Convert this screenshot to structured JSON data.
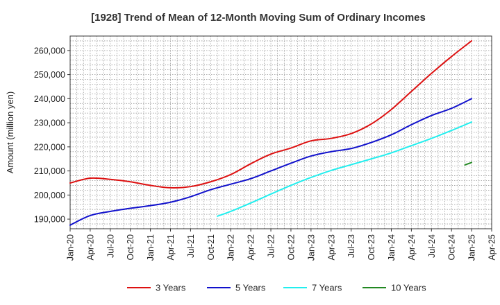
{
  "chart_data": {
    "type": "line",
    "title": "[1928]  Trend of Mean of 12-Month Moving Sum of Ordinary Incomes",
    "xlabel": "",
    "ylabel": "Amount (million yen)",
    "ylim": [
      186000,
      266000
    ],
    "y_ticks": [
      190000,
      200000,
      210000,
      220000,
      230000,
      240000,
      250000,
      260000
    ],
    "y_tick_labels": [
      "190,000",
      "200,000",
      "210,000",
      "220,000",
      "230,000",
      "240,000",
      "250,000",
      "260,000"
    ],
    "x_range_months": [
      0,
      63
    ],
    "x_ticks": [
      {
        "m": 0,
        "label": "Jan-20"
      },
      {
        "m": 3,
        "label": "Apr-20"
      },
      {
        "m": 6,
        "label": "Jul-20"
      },
      {
        "m": 9,
        "label": "Oct-20"
      },
      {
        "m": 12,
        "label": "Jan-21"
      },
      {
        "m": 15,
        "label": "Apr-21"
      },
      {
        "m": 18,
        "label": "Jul-21"
      },
      {
        "m": 21,
        "label": "Oct-21"
      },
      {
        "m": 24,
        "label": "Jan-22"
      },
      {
        "m": 27,
        "label": "Apr-22"
      },
      {
        "m": 30,
        "label": "Jul-22"
      },
      {
        "m": 33,
        "label": "Oct-22"
      },
      {
        "m": 36,
        "label": "Jan-23"
      },
      {
        "m": 39,
        "label": "Apr-23"
      },
      {
        "m": 42,
        "label": "Jul-23"
      },
      {
        "m": 45,
        "label": "Oct-23"
      },
      {
        "m": 48,
        "label": "Jan-24"
      },
      {
        "m": 51,
        "label": "Apr-24"
      },
      {
        "m": 54,
        "label": "Jul-24"
      },
      {
        "m": 57,
        "label": "Oct-24"
      },
      {
        "m": 60,
        "label": "Jan-25"
      },
      {
        "m": 63,
        "label": "Apr-25"
      }
    ],
    "grid": true,
    "legend_position": "bottom",
    "series": [
      {
        "name": "3 Years",
        "color": "#dd1111",
        "points": [
          [
            0,
            205000
          ],
          [
            3,
            207000
          ],
          [
            6,
            206500
          ],
          [
            9,
            205500
          ],
          [
            12,
            204000
          ],
          [
            15,
            203000
          ],
          [
            18,
            203500
          ],
          [
            21,
            205500
          ],
          [
            24,
            208500
          ],
          [
            27,
            213000
          ],
          [
            30,
            217000
          ],
          [
            33,
            219500
          ],
          [
            36,
            222500
          ],
          [
            39,
            223500
          ],
          [
            42,
            225500
          ],
          [
            45,
            229500
          ],
          [
            48,
            235500
          ],
          [
            51,
            243000
          ],
          [
            54,
            250500
          ],
          [
            57,
            257500
          ],
          [
            60,
            264000
          ]
        ]
      },
      {
        "name": "5 Years",
        "color": "#1111cc",
        "points": [
          [
            0,
            187500
          ],
          [
            3,
            191500
          ],
          [
            6,
            193200
          ],
          [
            9,
            194500
          ],
          [
            12,
            195600
          ],
          [
            15,
            197000
          ],
          [
            18,
            199300
          ],
          [
            21,
            202200
          ],
          [
            24,
            204500
          ],
          [
            27,
            206800
          ],
          [
            30,
            210000
          ],
          [
            33,
            213200
          ],
          [
            36,
            216200
          ],
          [
            39,
            218000
          ],
          [
            42,
            219300
          ],
          [
            45,
            221800
          ],
          [
            48,
            225000
          ],
          [
            51,
            229200
          ],
          [
            54,
            233000
          ],
          [
            57,
            236000
          ],
          [
            60,
            240000
          ]
        ]
      },
      {
        "name": "7 Years",
        "color": "#22eeee",
        "points": [
          [
            22,
            191200
          ],
          [
            24,
            193200
          ],
          [
            27,
            196700
          ],
          [
            30,
            200400
          ],
          [
            33,
            204000
          ],
          [
            36,
            207300
          ],
          [
            39,
            210200
          ],
          [
            42,
            212600
          ],
          [
            45,
            215000
          ],
          [
            48,
            217500
          ],
          [
            51,
            220500
          ],
          [
            54,
            223500
          ],
          [
            57,
            226800
          ],
          [
            60,
            230300
          ]
        ]
      },
      {
        "name": "10 Years",
        "color": "#228822",
        "points": [
          [
            59,
            212500
          ],
          [
            60,
            213500
          ]
        ]
      }
    ]
  }
}
